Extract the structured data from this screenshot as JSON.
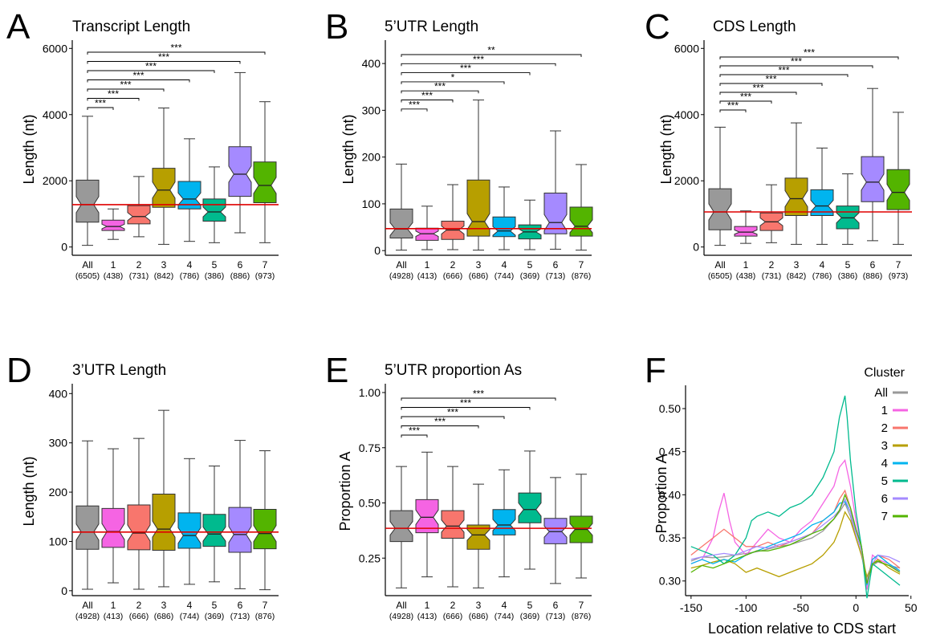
{
  "figure": {
    "colors": {
      "All": "#999999",
      "1": "#F564E3",
      "2": "#F8766D",
      "3": "#B79F00",
      "4": "#00B4EF",
      "5": "#00BA8E",
      "6": "#A58AFF",
      "7": "#53B400",
      "reference_line": "#E00000"
    }
  },
  "chart_data": [
    {
      "panel": "A",
      "type": "box",
      "title": "Transcript Length",
      "ylabel": "Length (nt)",
      "ylim": [
        -250,
        6250
      ],
      "yticks": [
        0,
        2000,
        4000,
        6000
      ],
      "notched": true,
      "categories": [
        "All",
        "1",
        "2",
        "3",
        "4",
        "5",
        "6",
        "7"
      ],
      "counts": [
        "(6505)",
        "(438)",
        "(731)",
        "(842)",
        "(786)",
        "(386)",
        "(886)",
        "(973)"
      ],
      "reference_line": 1280,
      "boxes": [
        {
          "min": 50,
          "q1": 750,
          "median": 1280,
          "q3": 2020,
          "max": 3950
        },
        {
          "min": 230,
          "q1": 500,
          "median": 620,
          "q3": 810,
          "max": 1150
        },
        {
          "min": 310,
          "q1": 700,
          "median": 920,
          "q3": 1250,
          "max": 2130
        },
        {
          "min": 80,
          "q1": 1200,
          "median": 1720,
          "q3": 2380,
          "max": 4200
        },
        {
          "min": 170,
          "q1": 1150,
          "median": 1450,
          "q3": 1980,
          "max": 3270
        },
        {
          "min": 130,
          "q1": 780,
          "median": 1060,
          "q3": 1450,
          "max": 2420
        },
        {
          "min": 430,
          "q1": 1530,
          "median": 2200,
          "q3": 3030,
          "max": 5270
        },
        {
          "min": 130,
          "q1": 1340,
          "median": 1860,
          "q3": 2570,
          "max": 4390
        }
      ],
      "significance": [
        {
          "group": "1",
          "label": "***"
        },
        {
          "group": "2",
          "label": "***"
        },
        {
          "group": "3",
          "label": "***"
        },
        {
          "group": "4",
          "label": "***"
        },
        {
          "group": "5",
          "label": "***"
        },
        {
          "group": "6",
          "label": "***"
        },
        {
          "group": "7",
          "label": "***"
        }
      ]
    },
    {
      "panel": "B",
      "type": "box",
      "title": "5’UTR Length",
      "ylabel": "Length (nt)",
      "ylim": [
        -10,
        450
      ],
      "yticks": [
        0,
        100,
        200,
        300,
        400
      ],
      "notched": true,
      "categories": [
        "All",
        "1",
        "2",
        "3",
        "4",
        "5",
        "6",
        "7"
      ],
      "counts": [
        "(4928)",
        "(413)",
        "(666)",
        "(686)",
        "(744)",
        "(369)",
        "(713)",
        "(876)"
      ],
      "reference_line": 47,
      "boxes": [
        {
          "min": 1,
          "q1": 27,
          "median": 46,
          "q3": 89,
          "max": 185
        },
        {
          "min": 2,
          "q1": 22,
          "median": 36,
          "q3": 48,
          "max": 95
        },
        {
          "min": 2,
          "q1": 24,
          "median": 44,
          "q3": 63,
          "max": 141
        },
        {
          "min": 1,
          "q1": 31,
          "median": 62,
          "q3": 151,
          "max": 322
        },
        {
          "min": 2,
          "q1": 30,
          "median": 42,
          "q3": 72,
          "max": 136
        },
        {
          "min": 2,
          "q1": 25,
          "median": 40,
          "q3": 55,
          "max": 108
        },
        {
          "min": 3,
          "q1": 36,
          "median": 60,
          "q3": 123,
          "max": 256
        },
        {
          "min": 1,
          "q1": 31,
          "median": 52,
          "q3": 93,
          "max": 184
        }
      ],
      "significance": [
        {
          "group": "1",
          "label": "***"
        },
        {
          "group": "2",
          "label": "***"
        },
        {
          "group": "3",
          "label": "***"
        },
        {
          "group": "4",
          "label": "*"
        },
        {
          "group": "5",
          "label": "***"
        },
        {
          "group": "6",
          "label": "***"
        },
        {
          "group": "7",
          "label": "**"
        }
      ]
    },
    {
      "panel": "C",
      "type": "box",
      "title": "CDS Length",
      "ylabel": "Length (nt)",
      "ylim": [
        -250,
        6250
      ],
      "yticks": [
        0,
        2000,
        4000,
        6000
      ],
      "notched": true,
      "categories": [
        "All",
        "1",
        "2",
        "3",
        "4",
        "5",
        "6",
        "7"
      ],
      "counts": [
        "(6505)",
        "(438)",
        "(731)",
        "(842)",
        "(786)",
        "(386)",
        "(886)",
        "(973)"
      ],
      "reference_line": 1060,
      "boxes": [
        {
          "min": 50,
          "q1": 520,
          "median": 1060,
          "q3": 1760,
          "max": 3620
        },
        {
          "min": 110,
          "q1": 330,
          "median": 450,
          "q3": 620,
          "max": 1090
        },
        {
          "min": 130,
          "q1": 500,
          "median": 760,
          "q3": 1030,
          "max": 1880
        },
        {
          "min": 80,
          "q1": 950,
          "median": 1460,
          "q3": 2080,
          "max": 3750
        },
        {
          "min": 80,
          "q1": 950,
          "median": 1240,
          "q3": 1730,
          "max": 2990
        },
        {
          "min": 80,
          "q1": 550,
          "median": 880,
          "q3": 1240,
          "max": 2210
        },
        {
          "min": 190,
          "q1": 1370,
          "median": 1960,
          "q3": 2730,
          "max": 4790
        },
        {
          "min": 80,
          "q1": 1130,
          "median": 1650,
          "q3": 2340,
          "max": 4070
        }
      ],
      "significance": [
        {
          "group": "1",
          "label": "***"
        },
        {
          "group": "2",
          "label": "***"
        },
        {
          "group": "3",
          "label": "***"
        },
        {
          "group": "4",
          "label": "***"
        },
        {
          "group": "5",
          "label": "***"
        },
        {
          "group": "6",
          "label": "***"
        },
        {
          "group": "7",
          "label": "***"
        }
      ]
    },
    {
      "panel": "D",
      "type": "box",
      "title": "3’UTR Length",
      "ylabel": "Length (nt)",
      "ylim": [
        -10,
        420
      ],
      "yticks": [
        0,
        100,
        200,
        300,
        400
      ],
      "notched": true,
      "categories": [
        "All",
        "1",
        "2",
        "3",
        "4",
        "5",
        "6",
        "7"
      ],
      "counts": [
        "(4928)",
        "(413)",
        "(666)",
        "(686)",
        "(744)",
        "(369)",
        "(713)",
        "(876)"
      ],
      "reference_line": 119,
      "boxes": [
        {
          "min": 3,
          "q1": 84,
          "median": 119,
          "q3": 172,
          "max": 304
        },
        {
          "min": 16,
          "q1": 88,
          "median": 120,
          "q3": 167,
          "max": 288
        },
        {
          "min": 3,
          "q1": 83,
          "median": 117,
          "q3": 174,
          "max": 309
        },
        {
          "min": 8,
          "q1": 82,
          "median": 125,
          "q3": 196,
          "max": 366
        },
        {
          "min": 13,
          "q1": 86,
          "median": 112,
          "q3": 158,
          "max": 268
        },
        {
          "min": 18,
          "q1": 90,
          "median": 115,
          "q3": 155,
          "max": 253
        },
        {
          "min": 4,
          "q1": 78,
          "median": 114,
          "q3": 169,
          "max": 305
        },
        {
          "min": 2,
          "q1": 85,
          "median": 116,
          "q3": 165,
          "max": 284
        }
      ],
      "significance": []
    },
    {
      "panel": "E",
      "type": "box",
      "title": "5’UTR proportion As",
      "ylabel": "Proportion A",
      "ylim": [
        0.08,
        1.04
      ],
      "yticks": [
        0.25,
        0.5,
        0.75,
        1.0
      ],
      "ytick_labels": [
        "0.25",
        "0.50",
        "0.75",
        "1.00"
      ],
      "notched": true,
      "categories": [
        "All",
        "1",
        "2",
        "3",
        "4",
        "5",
        "6",
        "7"
      ],
      "counts": [
        "(4928)",
        "(413)",
        "(666)",
        "(686)",
        "(744)",
        "(369)",
        "(713)",
        "(876)"
      ],
      "reference_line": 0.385,
      "boxes": [
        {
          "min": 0.115,
          "q1": 0.325,
          "median": 0.385,
          "q3": 0.465,
          "max": 0.665
        },
        {
          "min": 0.165,
          "q1": 0.365,
          "median": 0.435,
          "q3": 0.515,
          "max": 0.73
        },
        {
          "min": 0.12,
          "q1": 0.34,
          "median": 0.395,
          "q3": 0.465,
          "max": 0.665
        },
        {
          "min": 0.115,
          "q1": 0.29,
          "median": 0.355,
          "q3": 0.4,
          "max": 0.585
        },
        {
          "min": 0.165,
          "q1": 0.355,
          "median": 0.4,
          "q3": 0.47,
          "max": 0.65
        },
        {
          "min": 0.2,
          "q1": 0.41,
          "median": 0.47,
          "q3": 0.545,
          "max": 0.735
        },
        {
          "min": 0.135,
          "q1": 0.315,
          "median": 0.37,
          "q3": 0.43,
          "max": 0.615
        },
        {
          "min": 0.16,
          "q1": 0.32,
          "median": 0.38,
          "q3": 0.44,
          "max": 0.63
        }
      ],
      "significance": [
        {
          "group": "1",
          "label": "***"
        },
        {
          "group": "3",
          "label": "***"
        },
        {
          "group": "4",
          "label": "***"
        },
        {
          "group": "5",
          "label": "***"
        },
        {
          "group": "6",
          "label": "***"
        }
      ]
    },
    {
      "panel": "F",
      "type": "line",
      "title": "",
      "xlabel": "Location relative to CDS start",
      "ylabel": "Proportion A",
      "xlim": [
        -155,
        48
      ],
      "ylim": [
        0.283,
        0.527
      ],
      "xticks": [
        -150,
        -100,
        -50,
        0,
        50
      ],
      "yticks": [
        0.3,
        0.35,
        0.4,
        0.45,
        0.5
      ],
      "ytick_labels": [
        "0.30",
        "0.35",
        "0.40",
        "0.45",
        "0.50"
      ],
      "legend_title": "Cluster",
      "legend_position": "top-right",
      "series": [
        {
          "name": "All",
          "x": [
            -150,
            -140,
            -130,
            -120,
            -110,
            -100,
            -90,
            -80,
            -70,
            -60,
            -50,
            -40,
            -30,
            -25,
            -20,
            -15,
            -10,
            -5,
            0,
            5,
            10,
            15,
            20,
            30,
            40
          ],
          "y": [
            0.323,
            0.328,
            0.327,
            0.328,
            0.33,
            0.332,
            0.334,
            0.337,
            0.34,
            0.342,
            0.346,
            0.35,
            0.358,
            0.365,
            0.372,
            0.38,
            0.39,
            0.375,
            0.35,
            0.33,
            0.3,
            0.318,
            0.322,
            0.318,
            0.315
          ]
        },
        {
          "name": "1",
          "x": [
            -150,
            -140,
            -130,
            -125,
            -120,
            -115,
            -110,
            -100,
            -90,
            -80,
            -70,
            -60,
            -50,
            -40,
            -30,
            -20,
            -15,
            -10,
            -5,
            0,
            5,
            10,
            15,
            20,
            30,
            40
          ],
          "y": [
            0.32,
            0.325,
            0.35,
            0.38,
            0.402,
            0.37,
            0.345,
            0.33,
            0.345,
            0.36,
            0.35,
            0.345,
            0.36,
            0.37,
            0.39,
            0.41,
            0.432,
            0.44,
            0.41,
            0.37,
            0.34,
            0.29,
            0.33,
            0.325,
            0.32,
            0.31
          ]
        },
        {
          "name": "2",
          "x": [
            -150,
            -140,
            -130,
            -120,
            -110,
            -100,
            -90,
            -80,
            -70,
            -60,
            -50,
            -40,
            -30,
            -20,
            -15,
            -10,
            -5,
            0,
            5,
            10,
            15,
            20,
            30,
            40
          ],
          "y": [
            0.33,
            0.34,
            0.35,
            0.36,
            0.35,
            0.34,
            0.34,
            0.345,
            0.34,
            0.345,
            0.35,
            0.355,
            0.37,
            0.38,
            0.395,
            0.405,
            0.385,
            0.36,
            0.34,
            0.3,
            0.325,
            0.33,
            0.325,
            0.315
          ]
        },
        {
          "name": "3",
          "x": [
            -150,
            -140,
            -130,
            -120,
            -110,
            -100,
            -90,
            -80,
            -70,
            -60,
            -50,
            -40,
            -30,
            -20,
            -15,
            -10,
            -5,
            0,
            5,
            10,
            15,
            20,
            30,
            40
          ],
          "y": [
            0.315,
            0.318,
            0.322,
            0.325,
            0.32,
            0.31,
            0.315,
            0.31,
            0.305,
            0.31,
            0.315,
            0.32,
            0.33,
            0.345,
            0.36,
            0.38,
            0.37,
            0.35,
            0.33,
            0.305,
            0.32,
            0.325,
            0.315,
            0.308
          ]
        },
        {
          "name": "4",
          "x": [
            -150,
            -140,
            -130,
            -120,
            -110,
            -100,
            -90,
            -80,
            -70,
            -60,
            -50,
            -40,
            -30,
            -20,
            -15,
            -10,
            -5,
            0,
            5,
            10,
            15,
            20,
            30,
            40
          ],
          "y": [
            0.32,
            0.325,
            0.32,
            0.325,
            0.322,
            0.33,
            0.335,
            0.34,
            0.345,
            0.35,
            0.355,
            0.365,
            0.37,
            0.38,
            0.39,
            0.392,
            0.38,
            0.36,
            0.34,
            0.295,
            0.325,
            0.33,
            0.32,
            0.312
          ]
        },
        {
          "name": "5",
          "x": [
            -150,
            -140,
            -130,
            -120,
            -110,
            -100,
            -95,
            -90,
            -80,
            -70,
            -60,
            -50,
            -40,
            -30,
            -20,
            -15,
            -10,
            -8,
            -5,
            0,
            5,
            10,
            15,
            20,
            30,
            40
          ],
          "y": [
            0.34,
            0.335,
            0.33,
            0.32,
            0.33,
            0.35,
            0.37,
            0.375,
            0.38,
            0.375,
            0.385,
            0.39,
            0.4,
            0.42,
            0.45,
            0.49,
            0.515,
            0.49,
            0.44,
            0.38,
            0.34,
            0.28,
            0.32,
            0.315,
            0.305,
            0.295
          ]
        },
        {
          "name": "6",
          "x": [
            -150,
            -140,
            -130,
            -120,
            -110,
            -100,
            -90,
            -80,
            -70,
            -60,
            -50,
            -40,
            -30,
            -20,
            -15,
            -10,
            -5,
            0,
            5,
            10,
            15,
            20,
            30,
            40
          ],
          "y": [
            0.325,
            0.328,
            0.33,
            0.332,
            0.33,
            0.335,
            0.34,
            0.338,
            0.342,
            0.345,
            0.35,
            0.355,
            0.365,
            0.375,
            0.382,
            0.395,
            0.38,
            0.355,
            0.335,
            0.3,
            0.32,
            0.33,
            0.328,
            0.322
          ]
        },
        {
          "name": "7",
          "x": [
            -150,
            -140,
            -130,
            -120,
            -110,
            -100,
            -90,
            -80,
            -70,
            -60,
            -50,
            -40,
            -30,
            -20,
            -15,
            -10,
            -5,
            0,
            5,
            10,
            15,
            20,
            30,
            40
          ],
          "y": [
            0.31,
            0.318,
            0.315,
            0.32,
            0.325,
            0.33,
            0.335,
            0.335,
            0.338,
            0.342,
            0.348,
            0.355,
            0.36,
            0.372,
            0.382,
            0.4,
            0.385,
            0.36,
            0.34,
            0.297,
            0.32,
            0.323,
            0.318,
            0.31
          ]
        }
      ]
    }
  ]
}
